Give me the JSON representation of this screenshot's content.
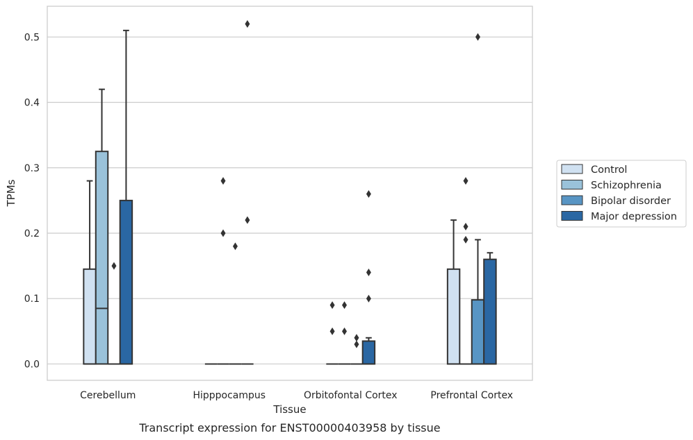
{
  "chart_data": {
    "type": "box",
    "xlabel": "Tissue",
    "ylabel": "TPMs",
    "caption": "Transcript expression for ENST00000403958 by tissue",
    "ylim": [
      -0.025,
      0.547
    ],
    "yticks": [
      0.0,
      0.1,
      0.2,
      0.3,
      0.4,
      0.5
    ],
    "ytick_labels": [
      "0.0",
      "0.1",
      "0.2",
      "0.3",
      "0.4",
      "0.5"
    ],
    "grid": true,
    "legend_position": "right",
    "categories": [
      "Cerebellum",
      "Hipppocampus",
      "Orbitofontal Cortex",
      "Prefrontal Cortex"
    ],
    "series": [
      {
        "name": "Control",
        "color": "#d0e1f1",
        "boxes": [
          {
            "q1": 0.0,
            "median": 0.0,
            "q3": 0.145,
            "whisker_low": 0.0,
            "whisker_high": 0.28,
            "outliers": []
          },
          {
            "q1": 0.0,
            "median": 0.0,
            "q3": 0.0,
            "whisker_low": 0.0,
            "whisker_high": 0.0,
            "outliers": []
          },
          {
            "q1": 0.0,
            "median": 0.0,
            "q3": 0.0,
            "whisker_low": 0.0,
            "whisker_high": 0.0,
            "outliers": [
              0.09,
              0.05
            ]
          },
          {
            "q1": 0.0,
            "median": 0.0,
            "q3": 0.145,
            "whisker_low": 0.0,
            "whisker_high": 0.22,
            "outliers": []
          }
        ]
      },
      {
        "name": "Schizophrenia",
        "color": "#9ac2da",
        "boxes": [
          {
            "q1": 0.0,
            "median": 0.085,
            "q3": 0.325,
            "whisker_low": 0.0,
            "whisker_high": 0.42,
            "outliers": []
          },
          {
            "q1": 0.0,
            "median": 0.0,
            "q3": 0.0,
            "whisker_low": 0.0,
            "whisker_high": 0.0,
            "outliers": [
              0.28,
              0.2
            ]
          },
          {
            "q1": 0.0,
            "median": 0.0,
            "q3": 0.0,
            "whisker_low": 0.0,
            "whisker_high": 0.0,
            "outliers": [
              0.09,
              0.05
            ]
          },
          {
            "q1": 0.0,
            "median": 0.0,
            "q3": 0.0,
            "whisker_low": 0.0,
            "whisker_high": 0.0,
            "outliers": [
              0.28,
              0.21,
              0.19
            ]
          }
        ]
      },
      {
        "name": "Bipolar disorder",
        "color": "#5895c4",
        "boxes": [
          {
            "q1": 0.0,
            "median": 0.0,
            "q3": 0.0,
            "whisker_low": 0.0,
            "whisker_high": 0.0,
            "outliers": [
              0.15
            ]
          },
          {
            "q1": 0.0,
            "median": 0.0,
            "q3": 0.0,
            "whisker_low": 0.0,
            "whisker_high": 0.0,
            "outliers": [
              0.18
            ]
          },
          {
            "q1": 0.0,
            "median": 0.0,
            "q3": 0.0,
            "whisker_low": 0.0,
            "whisker_high": 0.0,
            "outliers": [
              0.04,
              0.03
            ]
          },
          {
            "q1": 0.0,
            "median": 0.0,
            "q3": 0.098,
            "whisker_low": 0.0,
            "whisker_high": 0.19,
            "outliers": [
              0.5
            ]
          }
        ]
      },
      {
        "name": "Major depression",
        "color": "#2a67a3",
        "boxes": [
          {
            "q1": 0.0,
            "median": 0.0,
            "q3": 0.25,
            "whisker_low": 0.0,
            "whisker_high": 0.51,
            "outliers": []
          },
          {
            "q1": 0.0,
            "median": 0.0,
            "q3": 0.0,
            "whisker_low": 0.0,
            "whisker_high": 0.0,
            "outliers": [
              0.52,
              0.22
            ]
          },
          {
            "q1": 0.0,
            "median": 0.0,
            "q3": 0.035,
            "whisker_low": 0.0,
            "whisker_high": 0.04,
            "outliers": [
              0.26,
              0.14,
              0.1
            ]
          },
          {
            "q1": 0.0,
            "median": 0.0,
            "q3": 0.16,
            "whisker_low": 0.0,
            "whisker_high": 0.17,
            "outliers": []
          }
        ]
      }
    ]
  },
  "style": {
    "edge_color": "#333333",
    "grid_color": "#cccccc",
    "frame_color": "#cccccc",
    "text_color": "#262626"
  }
}
